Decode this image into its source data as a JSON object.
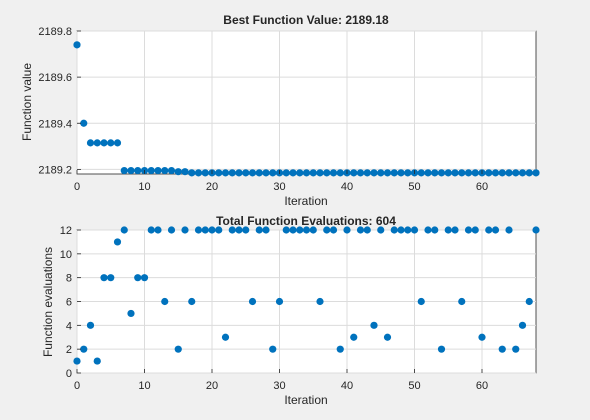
{
  "chart_data": [
    {
      "type": "scatter",
      "title": "Best Function Value: 2189.18",
      "xlabel": "Iteration",
      "ylabel": "Function value",
      "xlim": [
        0,
        68
      ],
      "ylim": [
        2189.18,
        2189.8
      ],
      "xticks": [
        0,
        10,
        20,
        30,
        40,
        50,
        60
      ],
      "yticks": [
        2189.2,
        2189.4,
        2189.6,
        2189.8
      ],
      "ytick_labels": [
        "2189.2",
        "2189.4",
        "2189.6",
        "2189.8"
      ],
      "grid": true,
      "color": "#0072bd",
      "x": [
        0,
        1,
        2,
        3,
        4,
        5,
        6,
        7,
        8,
        9,
        10,
        11,
        12,
        13,
        14,
        15,
        16,
        17,
        18,
        19,
        20,
        21,
        22,
        23,
        24,
        25,
        26,
        27,
        28,
        29,
        30,
        31,
        32,
        33,
        34,
        35,
        36,
        37,
        38,
        39,
        40,
        41,
        42,
        43,
        44,
        45,
        46,
        47,
        48,
        49,
        50,
        51,
        52,
        53,
        54,
        55,
        56,
        57,
        58,
        59,
        60,
        61,
        62,
        63,
        64,
        65,
        66,
        67,
        68
      ],
      "y": [
        2189.74,
        2189.4,
        2189.315,
        2189.315,
        2189.315,
        2189.315,
        2189.315,
        2189.195,
        2189.195,
        2189.195,
        2189.195,
        2189.195,
        2189.195,
        2189.195,
        2189.195,
        2189.19,
        2189.19,
        2189.185,
        2189.185,
        2189.185,
        2189.185,
        2189.185,
        2189.185,
        2189.185,
        2189.185,
        2189.185,
        2189.185,
        2189.185,
        2189.185,
        2189.185,
        2189.185,
        2189.185,
        2189.185,
        2189.185,
        2189.185,
        2189.185,
        2189.185,
        2189.185,
        2189.185,
        2189.185,
        2189.185,
        2189.185,
        2189.185,
        2189.185,
        2189.185,
        2189.185,
        2189.185,
        2189.185,
        2189.185,
        2189.185,
        2189.185,
        2189.185,
        2189.185,
        2189.185,
        2189.185,
        2189.185,
        2189.185,
        2189.185,
        2189.185,
        2189.185,
        2189.185,
        2189.185,
        2189.185,
        2189.185,
        2189.185,
        2189.185,
        2189.185,
        2189.185,
        2189.185
      ]
    },
    {
      "type": "scatter",
      "title": "Total Function Evaluations: 604",
      "xlabel": "Iteration",
      "ylabel": "Function evaluations",
      "xlim": [
        0,
        68
      ],
      "ylim": [
        0,
        12
      ],
      "xticks": [
        0,
        10,
        20,
        30,
        40,
        50,
        60
      ],
      "yticks": [
        0,
        2,
        4,
        6,
        8,
        10,
        12
      ],
      "ytick_labels": [
        "0",
        "2",
        "4",
        "6",
        "8",
        "10",
        "12"
      ],
      "grid": true,
      "color": "#0072bd",
      "x": [
        0,
        1,
        2,
        3,
        4,
        5,
        6,
        7,
        8,
        9,
        10,
        11,
        12,
        13,
        14,
        15,
        16,
        17,
        18,
        19,
        20,
        21,
        22,
        23,
        24,
        25,
        26,
        27,
        28,
        29,
        30,
        31,
        32,
        33,
        34,
        35,
        36,
        37,
        38,
        39,
        40,
        41,
        42,
        43,
        44,
        45,
        46,
        47,
        48,
        49,
        50,
        51,
        52,
        53,
        54,
        55,
        56,
        57,
        58,
        59,
        60,
        61,
        62,
        63,
        64,
        65,
        66,
        67,
        68
      ],
      "y": [
        1,
        2,
        4,
        1,
        8,
        8,
        11,
        12,
        5,
        8,
        8,
        12,
        12,
        6,
        12,
        2,
        12,
        6,
        12,
        12,
        12,
        12,
        3,
        12,
        12,
        12,
        6,
        12,
        12,
        2,
        6,
        12,
        12,
        12,
        12,
        12,
        6,
        12,
        12,
        2,
        12,
        3,
        12,
        12,
        4,
        12,
        3,
        12,
        12,
        12,
        12,
        6,
        12,
        12,
        2,
        12,
        12,
        6,
        12,
        12,
        3,
        12,
        12,
        2,
        12,
        2,
        4,
        6,
        12
      ]
    }
  ]
}
